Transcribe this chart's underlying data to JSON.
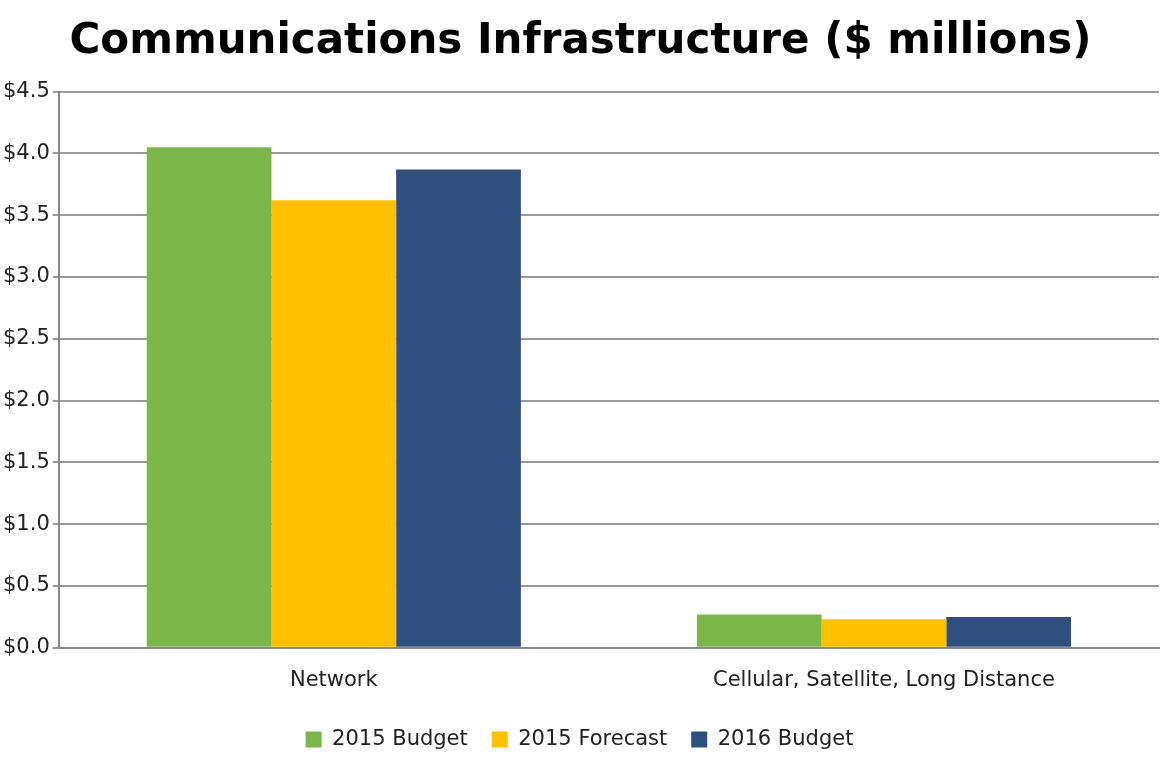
{
  "chart_data": {
    "type": "bar",
    "title": "Communications Infrastructure ($ millions)",
    "categories": [
      "Network",
      "Cellular, Satellite, Long Distance"
    ],
    "series": [
      {
        "name": "2015 Budget",
        "color": "#7ab648",
        "values": [
          4.05,
          0.27
        ]
      },
      {
        "name": "2015 Forecast",
        "color": "#ffc000",
        "values": [
          3.62,
          0.23
        ]
      },
      {
        "name": "2016 Budget",
        "color": "#2f4f7f",
        "values": [
          3.87,
          0.25
        ]
      }
    ],
    "ylim": [
      0,
      4.5
    ],
    "yticks": [
      {
        "value": 0,
        "label": "$0.0"
      },
      {
        "value": 0.5,
        "label": "$0.5"
      },
      {
        "value": 1,
        "label": "$1.0"
      },
      {
        "value": 1.5,
        "label": "$1.5"
      },
      {
        "value": 2,
        "label": "$2.0"
      },
      {
        "value": 2.5,
        "label": "$2.5"
      },
      {
        "value": 3,
        "label": "$3.0"
      },
      {
        "value": 3.5,
        "label": "$3.5"
      },
      {
        "value": 4,
        "label": "$4.0"
      },
      {
        "value": 4.5,
        "label": "$4.5"
      }
    ],
    "grid": "y",
    "legend": "bottom"
  }
}
